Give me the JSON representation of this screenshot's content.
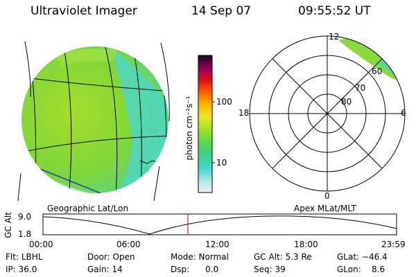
{
  "header": {
    "instrument": "Ultraviolet Imager",
    "date": "14 Sep 07",
    "time": "09:55:52 UT"
  },
  "colorbar": {
    "unit_label": "photon cm⁻²s⁻¹",
    "ticks": [
      "100",
      "10"
    ]
  },
  "polar_plot": {
    "mlt_labels": [
      "12",
      "18",
      "6",
      "0"
    ],
    "lat_labels": [
      "60",
      "70",
      "80"
    ]
  },
  "projection_labels": {
    "left": "Geographic Lat/Lon",
    "right": "Apex MLat/MLT"
  },
  "altitude_plot": {
    "ylabel": "GC Alt",
    "yticks": [
      "9.0",
      "1.8"
    ],
    "xticks": [
      "00:00",
      "06:00",
      "12:00",
      "18:00",
      "23:59"
    ]
  },
  "status": {
    "flt": "Flt: LBHL",
    "ip": "IP: 36.0",
    "door": "Door: Open",
    "gain": "Gain: 14",
    "mode": "Mode: Normal",
    "dsp": "Dsp:      0.0",
    "gc_alt": "GC Alt: 5.3 Re",
    "seq": "Seq: 39",
    "glat": "GLat: −46.4",
    "glon": "GLon:    8.6"
  },
  "colors": {
    "disk_main": "#7fd63a",
    "disk_secondary": "#42d6c8",
    "grid": "#000000",
    "coast_blue": "#1010c0",
    "marker_red": "#cc2020"
  }
}
